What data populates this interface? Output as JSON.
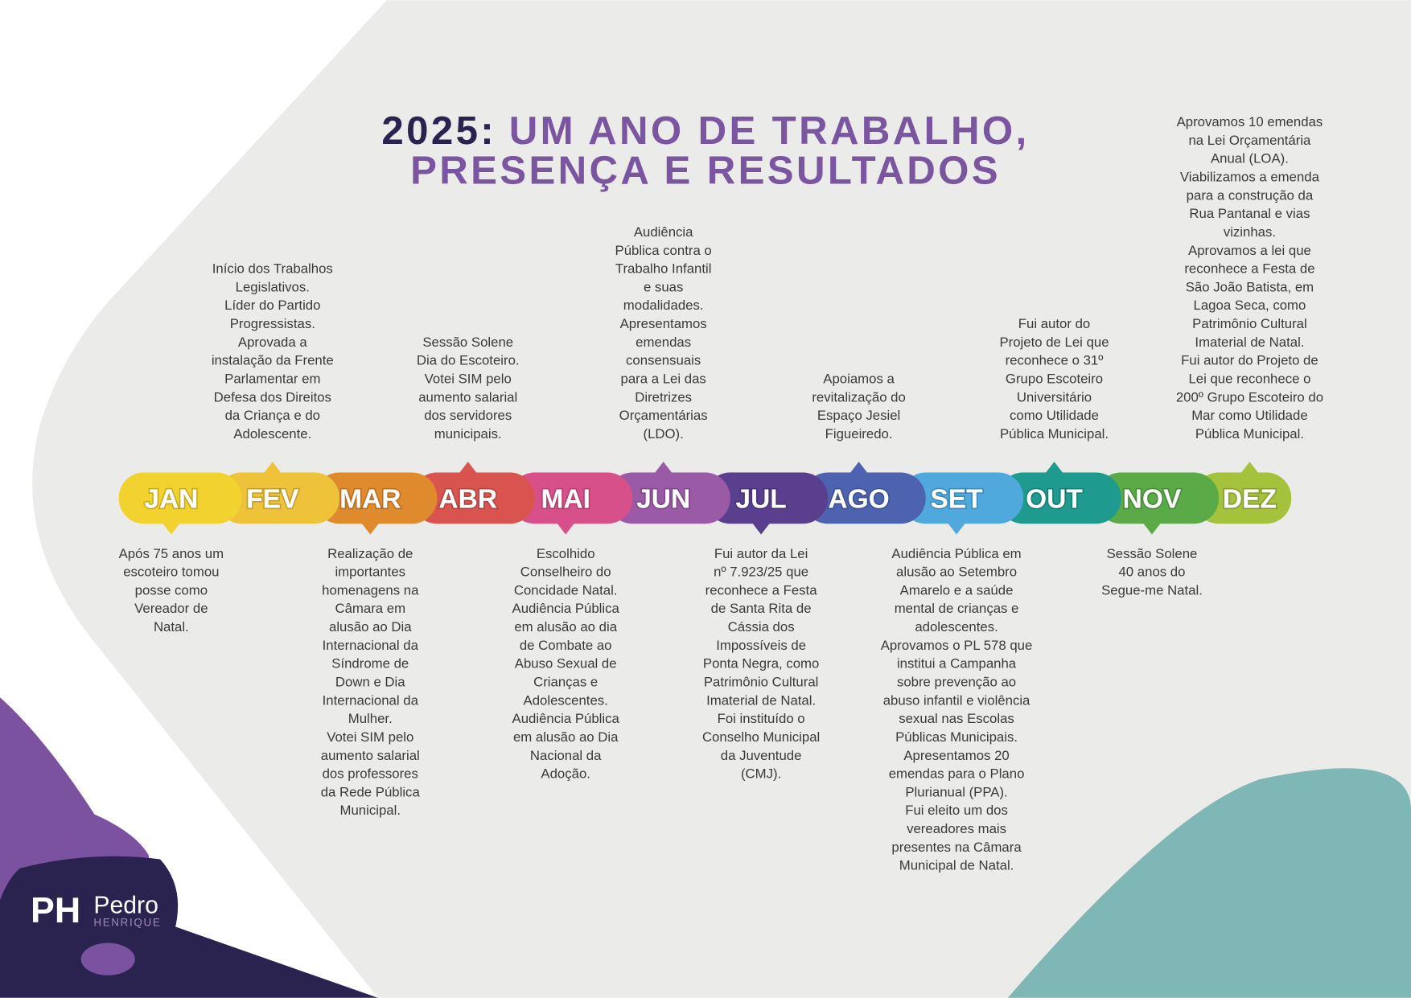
{
  "title": {
    "year": "2025:",
    "line1": "UM ANO DE TRABALHO,",
    "line2": "PRESENÇA E RESULTADOS"
  },
  "logo": {
    "mark": "PH",
    "name": "Pedro",
    "surname": "HENRIQUE"
  },
  "months": [
    {
      "label": "JAN",
      "color": "#f2d22e",
      "note": [
        "Após 75 anos um",
        "escoteiro tomou",
        "posse como",
        "Vereador de",
        "Natal."
      ]
    },
    {
      "label": "FEV",
      "color": "#eec33a",
      "note": [
        "Início dos Trabalhos",
        "Legislativos.",
        "Líder do Partido",
        "Progressistas.",
        "Aprovada a",
        "instalação da Frente",
        "Parlamentar em",
        "Defesa dos Direitos",
        "da Criança e do",
        "Adolescente."
      ]
    },
    {
      "label": "MAR",
      "color": "#e08a2e",
      "note": [
        "Realização de",
        "importantes",
        "homenagens na",
        "Câmara em",
        "alusão ao Dia",
        "Internacional da",
        "Síndrome de",
        "Down e Dia",
        "Internacional da",
        "Mulher.",
        "Votei SIM pelo",
        "aumento salarial",
        "dos professores",
        "da Rede Pública",
        "Municipal."
      ]
    },
    {
      "label": "ABR",
      "color": "#d9534f",
      "note": [
        "Sessão Solene",
        "Dia do Escoteiro.",
        "Votei SIM pelo",
        "aumento salarial",
        "dos servidores",
        "municipais."
      ]
    },
    {
      "label": "MAI",
      "color": "#d8508a",
      "note": [
        "Escolhido",
        "Conselheiro do",
        "Concidade Natal.",
        "Audiência Pública",
        "em alusão ao dia",
        "de Combate ao",
        "Abuso Sexual de",
        "Crianças e",
        "Adolescentes.",
        "Audiência Pública",
        "em alusão ao Dia",
        "Nacional da",
        "Adoção."
      ]
    },
    {
      "label": "JUN",
      "color": "#9a5aa6",
      "note": [
        "Audiência",
        "Pública contra o",
        "Trabalho Infantil",
        "e suas",
        "modalidades.",
        "Apresentamos",
        "emendas",
        "consensuais",
        "para a Lei das",
        "Diretrizes",
        "Orçamentárias",
        "(LDO)."
      ]
    },
    {
      "label": "JUL",
      "color": "#5a3f8f",
      "note": [
        "Fui autor da Lei",
        "nº 7.923/25 que",
        "reconhece a Festa",
        "de Santa Rita de",
        "Cássia dos",
        "Impossíveis de",
        "Ponta Negra, como",
        "Patrimônio Cultural",
        "Imaterial de Natal.",
        "Foi instituído o",
        "Conselho Municipal",
        "da Juventude",
        "(CMJ)."
      ]
    },
    {
      "label": "AGO",
      "color": "#4d63b0",
      "note": [
        "Apoiamos a",
        "revitalização do",
        "Espaço Jesiel",
        "Figueiredo."
      ]
    },
    {
      "label": "SET",
      "color": "#4fa9dd",
      "note": [
        "Audiência Pública em",
        "alusão ao Setembro",
        "Amarelo e a saúde",
        "mental de crianças e",
        "adolescentes.",
        "Aprovamos o PL 578 que",
        "institui a Campanha",
        "sobre prevenção ao",
        "abuso infantil e violência",
        "sexual nas Escolas",
        "Públicas Municipais.",
        "Apresentamos 20",
        "emendas para o Plano",
        "Plurianual (PPA).",
        "Fui eleito um dos",
        "vereadores mais",
        "presentes na Câmara",
        "Municipal de Natal."
      ]
    },
    {
      "label": "OUT",
      "color": "#1f9a8e",
      "note": [
        "Fui autor do",
        "Projeto de Lei que",
        "reconhece o 31º",
        "Grupo Escoteiro",
        "Universitário",
        "como Utilidade",
        "Pública Municipal."
      ]
    },
    {
      "label": "NOV",
      "color": "#5aaa48",
      "note": [
        "Sessão Solene",
        "40 anos do",
        "Segue-me Natal."
      ]
    },
    {
      "label": "DEZ",
      "color": "#a4c23b",
      "note": [
        "Aprovamos 10 emendas",
        "na Lei Orçamentária",
        "Anual (LOA).",
        "Viabilizamos a emenda",
        "para a construção da",
        "Rua Pantanal e vias",
        "vizinhas.",
        "Aprovamos a lei que",
        "reconhece a Festa de",
        "São João Batista, em",
        "Lagoa Seca, como",
        "Patrimônio Cultural",
        "Imaterial de Natal.",
        "Fui autor do Projeto de",
        "Lei que reconhece o",
        "200º Grupo Escoteiro do",
        "Mar como Utilidade",
        "Pública Municipal."
      ]
    }
  ]
}
